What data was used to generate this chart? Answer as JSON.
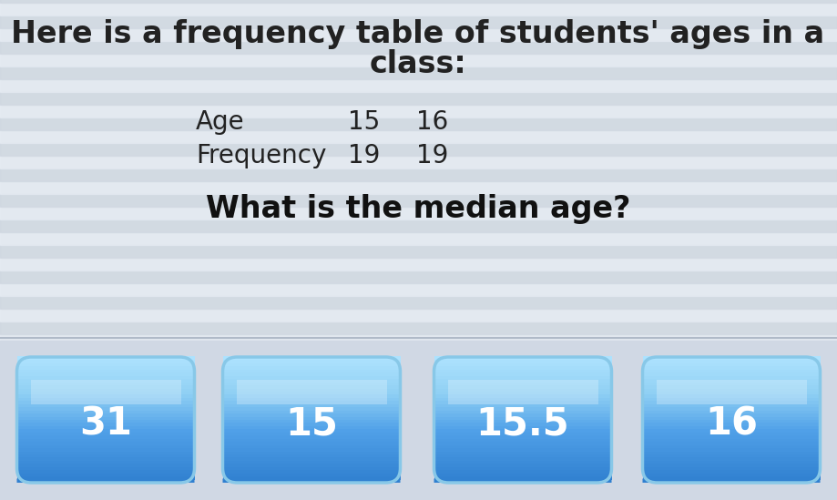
{
  "title_line1": "Here is a frequency table of students' ages in a",
  "title_line2": "class:",
  "table_col1_label": "Age",
  "table_col2_label": "15",
  "table_col3_label": "16",
  "table_row2_label": "Frequency",
  "table_row2_col2": "19",
  "table_row2_col3": "19",
  "question": "What is the median age?",
  "answers": [
    "31",
    "15",
    "15.5",
    "16"
  ],
  "bg_color": "#dde3ea",
  "stripe_light": "#e8eef5",
  "stripe_dark": "#ccd4de",
  "bottom_bg": "#d0d8e4",
  "btn_top_color": "#a8daf0",
  "btn_mid_color": "#5ab4e0",
  "btn_bot_color": "#3080c8",
  "btn_edge_color": "#6aaee0",
  "btn_text_color": "#ffffff",
  "title_color": "#222222",
  "table_color": "#222222",
  "question_color": "#111111",
  "title_fontsize": 24,
  "table_fontsize": 20,
  "question_fontsize": 24,
  "answer_fontsize": 30
}
